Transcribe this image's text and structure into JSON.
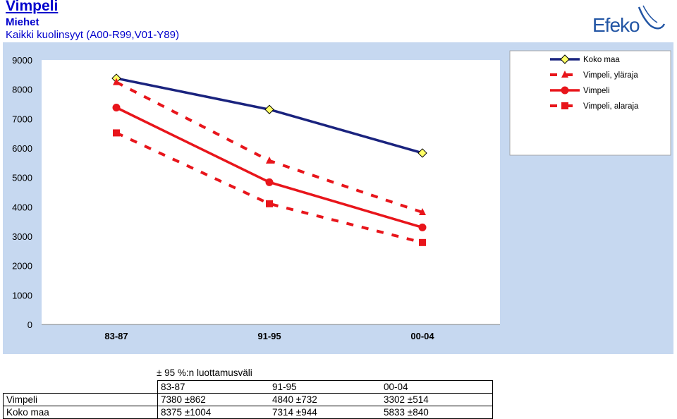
{
  "header": {
    "title": "Vimpeli",
    "subtitle": "Miehet",
    "subtitle2": "Kaikki kuolinsyyt (A00-R99,V01-Y89)",
    "logo_text": "Efeko"
  },
  "chart_data": {
    "type": "line",
    "categories": [
      "83-87",
      "91-95",
      "00-04"
    ],
    "ylim": [
      0,
      9000
    ],
    "yticks": [
      "0",
      "1000",
      "2000",
      "3000",
      "4000",
      "5000",
      "6000",
      "7000",
      "8000",
      "9000"
    ],
    "series": [
      {
        "name": "Koko maa",
        "values": [
          8375,
          7314,
          5833
        ],
        "color": "#1a237e",
        "marker": "diamond",
        "dashed": false
      },
      {
        "name": "Vimpeli, yläraja",
        "values": [
          8242,
          5572,
          3816
        ],
        "color": "#e8151b",
        "marker": "triangle",
        "dashed": true
      },
      {
        "name": "Vimpeli",
        "values": [
          7380,
          4840,
          3302
        ],
        "color": "#e8151b",
        "marker": "circle",
        "dashed": false
      },
      {
        "name": "Vimpeli, alaraja",
        "values": [
          6518,
          4108,
          2788
        ],
        "color": "#e8151b",
        "marker": "square",
        "dashed": true
      }
    ],
    "plot_background": "#c6d8f0",
    "legend_placement": "top-right"
  },
  "table": {
    "caption": "± 95 %:n luottamusväli",
    "columns": [
      "83-87",
      "91-95",
      "00-04"
    ],
    "rows": [
      {
        "label": "Vimpeli",
        "cells": [
          "7380 ±862",
          "4840 ±732",
          "3302 ±514"
        ]
      },
      {
        "label": "Koko maa",
        "cells": [
          "8375 ±1004",
          "7314 ±944",
          "5833 ±840"
        ]
      }
    ]
  }
}
